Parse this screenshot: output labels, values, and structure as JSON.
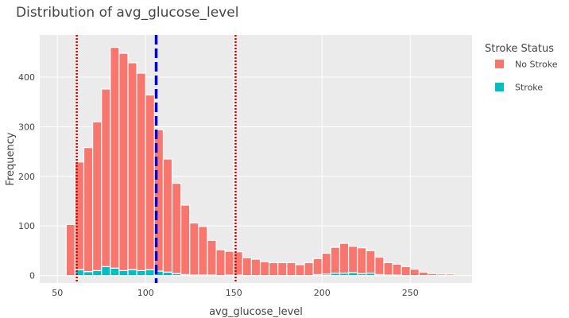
{
  "chart_data": {
    "type": "bar",
    "title": "Distribution of avg_glucose_level",
    "xlabel": "avg_glucose_level",
    "ylabel": "Frequency",
    "xlim": [
      40,
      285
    ],
    "ylim": [
      -15,
      485
    ],
    "x_ticks": [
      50,
      100,
      150,
      200,
      250
    ],
    "y_ticks": [
      0,
      100,
      200,
      300,
      400
    ],
    "bin_width": 5,
    "bin_starts": [
      55,
      60,
      65,
      70,
      75,
      80,
      85,
      90,
      95,
      100,
      105,
      110,
      115,
      120,
      125,
      130,
      135,
      140,
      145,
      150,
      155,
      160,
      165,
      170,
      175,
      180,
      185,
      190,
      195,
      200,
      205,
      210,
      215,
      220,
      225,
      230,
      235,
      240,
      245,
      250,
      255,
      260,
      265,
      270
    ],
    "series": [
      {
        "name": "No Stroke",
        "color": "#F8766D",
        "values": [
          103,
          217,
          250,
          300,
          358,
          445,
          438,
          417,
          398,
          352,
          285,
          228,
          182,
          140,
          105,
          98,
          70,
          52,
          48,
          47,
          36,
          33,
          28,
          26,
          26,
          26,
          22,
          26,
          32,
          42,
          52,
          60,
          53,
          52,
          45,
          35,
          25,
          22,
          18,
          13,
          7,
          4,
          3,
          3
        ]
      },
      {
        "name": "Stroke",
        "color": "#00BFC4",
        "values": [
          0,
          12,
          8,
          10,
          18,
          15,
          10,
          12,
          10,
          12,
          9,
          7,
          4,
          2,
          1,
          1,
          1,
          0,
          1,
          1,
          0,
          0,
          0,
          0,
          0,
          0,
          0,
          0,
          2,
          3,
          5,
          5,
          6,
          4,
          5,
          2,
          1,
          1,
          0,
          0,
          0,
          0,
          0,
          0
        ]
      }
    ],
    "reference_lines": [
      {
        "x": 61,
        "color": "#DD0000",
        "style": "dotted"
      },
      {
        "x": 106,
        "color": "#0000DD",
        "style": "dashed"
      },
      {
        "x": 151,
        "color": "#DD0000",
        "style": "dotted"
      }
    ],
    "grid": true,
    "legend": {
      "title": "Stroke Status",
      "position": "right"
    }
  }
}
